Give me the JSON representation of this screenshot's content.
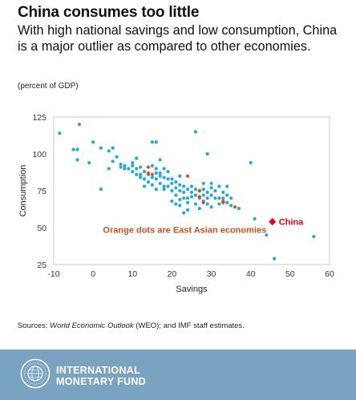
{
  "header": {
    "title": "China consumes too little",
    "subtitle": "With high national savings and low consumption, China is a major outlier as compared to other economies.",
    "unit_note": "(percent of GDP)"
  },
  "source_note": {
    "prefix": "Sources: ",
    "italic": "World Economic Outlook",
    "suffix": " (WEO); and IMF staff estimates."
  },
  "footer": {
    "line1": "INTERNATIONAL",
    "line2": "MONETARY FUND",
    "logo_icon": "imf-seal-icon",
    "bg_color": "#7aa3c1"
  },
  "chart_data": {
    "type": "scatter",
    "title": "China consumes too little",
    "xlabel": "Savings",
    "ylabel": "Consumption",
    "xlim": [
      -10,
      60
    ],
    "ylim": [
      25,
      125
    ],
    "xticks": [
      -10,
      0,
      10,
      20,
      30,
      40,
      50,
      60
    ],
    "yticks": [
      25,
      50,
      75,
      100,
      125
    ],
    "grid": false,
    "colors": {
      "other": "#23a7d7",
      "east_asia": "#c8521a",
      "china": "#e0001b"
    },
    "annotations": [
      {
        "text": "Orange dots are East Asian economies",
        "color": "#c8521a"
      },
      {
        "text": "China",
        "color": "#e0001b"
      }
    ],
    "series": [
      {
        "key": "other",
        "points": [
          [
            -8.5,
            114
          ],
          [
            -3.5,
            120
          ],
          [
            -5,
            103
          ],
          [
            -4,
            103
          ],
          [
            -4,
            96
          ],
          [
            0,
            108
          ],
          [
            -1,
            94
          ],
          [
            2,
            104
          ],
          [
            2,
            76
          ],
          [
            4,
            102
          ],
          [
            4,
            90
          ],
          [
            5,
            104
          ],
          [
            5,
            95
          ],
          [
            6,
            98
          ],
          [
            7,
            93
          ],
          [
            7,
            91
          ],
          [
            8,
            92
          ],
          [
            8,
            90
          ],
          [
            9,
            90
          ],
          [
            10,
            94
          ],
          [
            10,
            92
          ],
          [
            10,
            88
          ],
          [
            11,
            97
          ],
          [
            11,
            90
          ],
          [
            11,
            86
          ],
          [
            12,
            91
          ],
          [
            12,
            86
          ],
          [
            12,
            84
          ],
          [
            13,
            83
          ],
          [
            13,
            78
          ],
          [
            13,
            88
          ],
          [
            14,
            86
          ],
          [
            14,
            81
          ],
          [
            15,
            108
          ],
          [
            15,
            92
          ],
          [
            15,
            84
          ],
          [
            15,
            79
          ],
          [
            16,
            108
          ],
          [
            16,
            90
          ],
          [
            16,
            87
          ],
          [
            16,
            83
          ],
          [
            16,
            76
          ],
          [
            17,
            96
          ],
          [
            17,
            87
          ],
          [
            17,
            85
          ],
          [
            17,
            80
          ],
          [
            18,
            90
          ],
          [
            18,
            84
          ],
          [
            18,
            78
          ],
          [
            18,
            76
          ],
          [
            19,
            83
          ],
          [
            19,
            78
          ],
          [
            19,
            88
          ],
          [
            20,
            83
          ],
          [
            20,
            80
          ],
          [
            20,
            75
          ],
          [
            20,
            68
          ],
          [
            21,
            81
          ],
          [
            21,
            77
          ],
          [
            21,
            72
          ],
          [
            21,
            66
          ],
          [
            22,
            85
          ],
          [
            22,
            79
          ],
          [
            22,
            75
          ],
          [
            22,
            69
          ],
          [
            22,
            65
          ],
          [
            23,
            78
          ],
          [
            23,
            74
          ],
          [
            23,
            70
          ],
          [
            23,
            60
          ],
          [
            24,
            76
          ],
          [
            24,
            70
          ],
          [
            24,
            67
          ],
          [
            24,
            62
          ],
          [
            25,
            78
          ],
          [
            25,
            74
          ],
          [
            25,
            71
          ],
          [
            26,
            115
          ],
          [
            26,
            76
          ],
          [
            26,
            72
          ],
          [
            26,
            66
          ],
          [
            27,
            75
          ],
          [
            27,
            70
          ],
          [
            27,
            63
          ],
          [
            28,
            80
          ],
          [
            28,
            76
          ],
          [
            28,
            72
          ],
          [
            28,
            68
          ],
          [
            29,
            100
          ],
          [
            29,
            74
          ],
          [
            29,
            70
          ],
          [
            29,
            66
          ],
          [
            30,
            80
          ],
          [
            30,
            77
          ],
          [
            30,
            72
          ],
          [
            30,
            64
          ],
          [
            31,
            75
          ],
          [
            31,
            70
          ],
          [
            32,
            78
          ],
          [
            32,
            70
          ],
          [
            32,
            66
          ],
          [
            33,
            74
          ],
          [
            33,
            70
          ],
          [
            34,
            78
          ],
          [
            34,
            72
          ],
          [
            34,
            67
          ],
          [
            35,
            70
          ],
          [
            35,
            65
          ],
          [
            37,
            63
          ],
          [
            40,
            94
          ],
          [
            41,
            56
          ],
          [
            44,
            45
          ],
          [
            46,
            29
          ],
          [
            56,
            44
          ]
        ]
      },
      {
        "key": "east_asia",
        "points": [
          [
            14,
            91
          ],
          [
            14,
            87
          ],
          [
            15,
            86
          ],
          [
            24,
            85
          ],
          [
            27,
            75
          ],
          [
            27,
            71
          ],
          [
            28,
            67
          ],
          [
            33,
            68
          ],
          [
            33,
            67
          ],
          [
            36,
            64
          ]
        ]
      },
      {
        "key": "china",
        "name": "China",
        "points": [
          [
            45.5,
            54
          ]
        ]
      }
    ]
  }
}
